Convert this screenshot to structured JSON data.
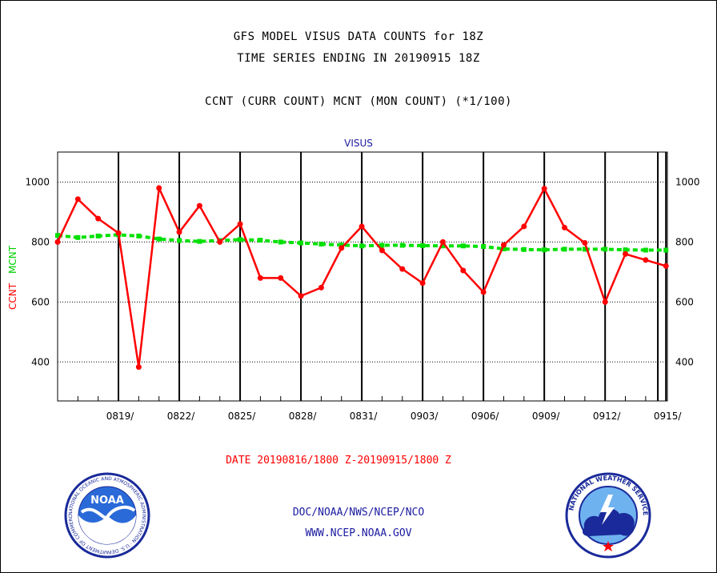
{
  "header": {
    "title_line1": "GFS MODEL VISUS DATA COUNTS for 18Z",
    "title_line2": "TIME SERIES ENDING IN 20190915 18Z",
    "subtitle": "CCNT (CURR COUNT) MCNT (MON COUNT) (*1/100)"
  },
  "chart_data": {
    "type": "line",
    "title": "VISUS",
    "ylabel_parts": [
      "CCNT",
      "MCNT"
    ],
    "xlabel": "DATE 20190816/1800 Z-20190915/1800 Z",
    "ylim": [
      270,
      1100
    ],
    "yticks": [
      400,
      600,
      800,
      1000
    ],
    "grid": true,
    "x_dates": [
      "0816",
      "0817",
      "0818",
      "0819",
      "0820",
      "0821",
      "0822",
      "0823",
      "0824",
      "0825",
      "0826",
      "0827",
      "0828",
      "0829",
      "0830",
      "0831",
      "0901",
      "0902",
      "0903",
      "0904",
      "0905",
      "0906",
      "0907",
      "0908",
      "0909",
      "0910",
      "0911",
      "0912",
      "0913",
      "0914",
      "0915",
      "0916"
    ],
    "x_tick_labels": [
      "0819/",
      "0822/",
      "0825/",
      "0828/",
      "0831/",
      "0903/",
      "0906/",
      "0909/",
      "0912/",
      "0915/"
    ],
    "x_tick_index": [
      3,
      6,
      9,
      12,
      15,
      18,
      21,
      24,
      27,
      30
    ],
    "series": [
      {
        "name": "CCNT",
        "color": "#ff0000",
        "values": [
          800,
          943,
          878,
          830,
          383,
          980,
          833,
          921,
          800,
          860,
          680,
          680,
          620,
          648,
          780,
          852,
          772,
          710,
          663,
          800,
          705,
          633,
          790,
          852,
          978,
          848,
          797,
          600,
          760,
          740,
          720
        ]
      },
      {
        "name": "MCNT",
        "color": "#00e000",
        "values": [
          822,
          815,
          820,
          824,
          820,
          810,
          805,
          802,
          805,
          808,
          806,
          800,
          797,
          793,
          790,
          787,
          789,
          789,
          788,
          787,
          787,
          785,
          777,
          775,
          774,
          776,
          776,
          776,
          774,
          773,
          773
        ]
      }
    ]
  },
  "footer": {
    "org": "DOC/NOAA/NWS/NCEP/NCO",
    "url": "WWW.NCEP.NOAA.GOV"
  },
  "logos": {
    "noaa": {
      "text": "NOAA",
      "ring_text": "NATIONAL OCEANIC AND ATMOSPHERIC ADMINISTRATION · U.S. DEPARTMENT OF COMMERCE"
    },
    "nws": {
      "ring_text": "NATIONAL WEATHER SERVICE"
    }
  }
}
